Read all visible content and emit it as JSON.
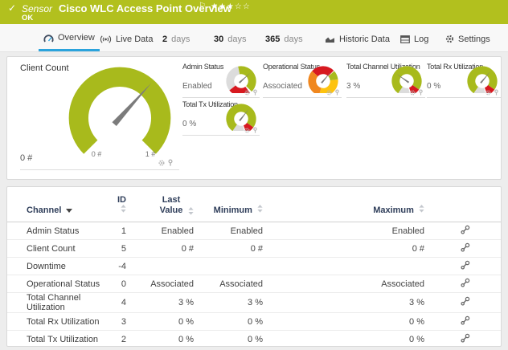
{
  "colors": {
    "banner_ok_green": "#b2c01e",
    "gauge_green": "#a8ba1c",
    "alarm_red": "#d71920",
    "warning_yellow": "#fdc30f",
    "warning_orange": "#f0871e",
    "ring_gray": "#dcdcdc",
    "needle_gray": "#7b7b7b",
    "active_tab_blue": "#2ba3dc"
  },
  "header": {
    "status_icon": "✓",
    "kind": "Sensor",
    "title": "Cisco WLC Access Point Overview",
    "status": "OK",
    "flag_icon": "⚐",
    "stars": "★★★☆☆",
    "priority": "3 of 5"
  },
  "tabs": [
    {
      "label": "Overview",
      "icon": "gauge-icon",
      "active": true
    },
    {
      "label": "Live Data",
      "icon": "signal-icon"
    },
    {
      "num": "2",
      "label": "days"
    },
    {
      "num": "30",
      "label": "days"
    },
    {
      "num": "365",
      "label": "days"
    },
    {
      "label": "Historic Data",
      "icon": "chart-icon"
    },
    {
      "label": "Log",
      "icon": "log-icon"
    },
    {
      "label": "Settings",
      "icon": "gear-icon"
    }
  ],
  "gauges": {
    "main": {
      "title": "Client Count",
      "value": "0 #",
      "scale_min": "0 #",
      "scale_max": "1 #",
      "needle_deg": 42,
      "segments": [
        {
          "from": -135,
          "to": 135,
          "color": "#a8ba1c"
        }
      ]
    },
    "small": [
      {
        "title": "Admin Status",
        "value": "Enabled",
        "needle_deg": 48,
        "segments": [
          {
            "from": -12,
            "to": 135,
            "color": "#a8ba1c"
          },
          {
            "from": 143,
            "to": 232,
            "color": "#d71920"
          },
          {
            "from": 232,
            "to": 348,
            "color": "#dcdcdc"
          }
        ]
      },
      {
        "title": "Operational Status",
        "value": "Associated",
        "needle_deg": 40,
        "segments": [
          {
            "from": -48,
            "to": 45,
            "color": "#d71920"
          },
          {
            "from": 48,
            "to": 84,
            "color": "#a8ba1c"
          },
          {
            "from": 84,
            "to": 196,
            "color": "#fdc30f"
          },
          {
            "from": 196,
            "to": 312,
            "color": "#f0871e"
          }
        ]
      },
      {
        "title": "Total Channel Utilization",
        "value": "3 %",
        "needle_deg": -55,
        "segments": [
          {
            "from": -145,
            "to": 125,
            "color": "#a8ba1c"
          },
          {
            "from": 125,
            "to": 160,
            "color": "#d71920"
          },
          {
            "from": 166,
            "to": 215,
            "color": "#dcdcdc"
          }
        ]
      },
      {
        "title": "Total Rx Utilization",
        "value": "0 %",
        "needle_deg": 40,
        "segments": [
          {
            "from": -145,
            "to": 125,
            "color": "#a8ba1c"
          },
          {
            "from": 125,
            "to": 160,
            "color": "#d71920"
          },
          {
            "from": 166,
            "to": 215,
            "color": "#dcdcdc"
          }
        ]
      },
      {
        "title": "Total Tx Utilization",
        "value": "0 %",
        "needle_deg": 38,
        "segments": [
          {
            "from": -145,
            "to": 125,
            "color": "#a8ba1c"
          },
          {
            "from": 125,
            "to": 160,
            "color": "#d71920"
          },
          {
            "from": 166,
            "to": 215,
            "color": "#dcdcdc"
          }
        ]
      }
    ]
  },
  "table": {
    "columns": [
      {
        "label": "Channel",
        "sorted": true
      },
      {
        "label": "ID",
        "sortable": true
      },
      {
        "label": "Last Value",
        "sortable": true
      },
      {
        "label": "Minimum",
        "sortable": true
      },
      {
        "label": "Maximum",
        "sortable": true
      }
    ],
    "rows": [
      {
        "channel": "Admin Status",
        "id": "1",
        "last": "Enabled",
        "min": "Enabled",
        "max": "Enabled"
      },
      {
        "channel": "Client Count",
        "id": "5",
        "last": "0 #",
        "min": "0 #",
        "max": "0 #"
      },
      {
        "channel": "Downtime",
        "id": "-4",
        "last": "",
        "min": "",
        "max": ""
      },
      {
        "channel": "Operational Status",
        "id": "0",
        "last": "Associated",
        "min": "Associated",
        "max": "Associated"
      },
      {
        "channel": "Total Channel Utilization",
        "id": "4",
        "last": "3 %",
        "min": "3 %",
        "max": "3 %"
      },
      {
        "channel": "Total Rx Utilization",
        "id": "3",
        "last": "0 %",
        "min": "0 %",
        "max": "0 %"
      },
      {
        "channel": "Total Tx Utilization",
        "id": "2",
        "last": "0 %",
        "min": "0 %",
        "max": "0 %"
      }
    ]
  }
}
